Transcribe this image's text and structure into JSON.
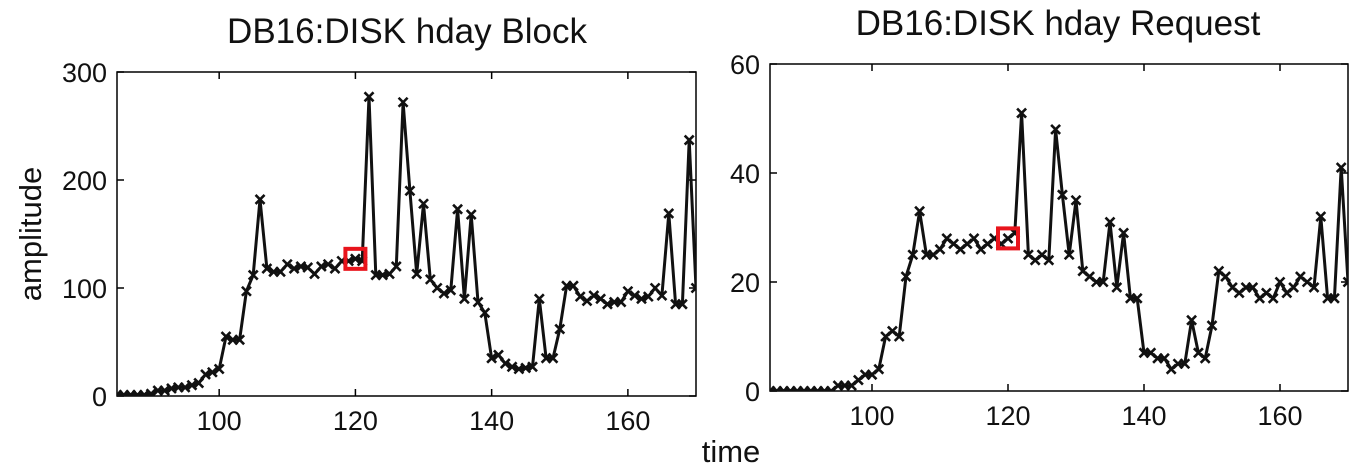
{
  "shared_xlabel": "time",
  "marker_color": "#e8141c",
  "line_color": "#111111",
  "chart_data": [
    {
      "type": "line",
      "title": "DB16:DISK hday Block",
      "xlabel": "",
      "ylabel": "amplitude",
      "xlim": [
        85,
        170
      ],
      "ylim": [
        0,
        300
      ],
      "xticks": [
        100,
        120,
        140,
        160
      ],
      "yticks": [
        0,
        100,
        200,
        300
      ],
      "grid": false,
      "marker": "x",
      "highlight": {
        "x": 120,
        "y": 127
      },
      "x": [
        85,
        86,
        87,
        88,
        89,
        90,
        91,
        92,
        93,
        94,
        95,
        96,
        97,
        98,
        99,
        100,
        101,
        102,
        103,
        104,
        105,
        106,
        107,
        108,
        109,
        110,
        111,
        112,
        113,
        114,
        115,
        116,
        117,
        118,
        119,
        120,
        121,
        122,
        123,
        124,
        125,
        126,
        127,
        128,
        129,
        130,
        131,
        132,
        133,
        134,
        135,
        136,
        137,
        138,
        139,
        140,
        141,
        142,
        143,
        144,
        145,
        146,
        147,
        148,
        149,
        150,
        151,
        152,
        153,
        154,
        155,
        156,
        157,
        158,
        159,
        160,
        161,
        162,
        163,
        164,
        165,
        166,
        167,
        168,
        169,
        170
      ],
      "y": [
        1,
        1,
        1,
        1,
        1,
        2,
        5,
        5,
        7,
        8,
        8,
        10,
        12,
        20,
        22,
        25,
        55,
        52,
        52,
        97,
        112,
        182,
        118,
        115,
        115,
        122,
        118,
        120,
        119,
        113,
        120,
        122,
        118,
        125,
        125,
        127,
        125,
        277,
        112,
        112,
        113,
        120,
        272,
        190,
        113,
        178,
        108,
        100,
        95,
        98,
        173,
        90,
        168,
        87,
        77,
        35,
        38,
        30,
        27,
        25,
        26,
        27,
        90,
        35,
        35,
        62,
        102,
        102,
        92,
        88,
        93,
        90,
        85,
        87,
        87,
        97,
        93,
        90,
        92,
        100,
        93,
        169,
        85,
        85,
        237,
        100
      ]
    },
    {
      "type": "line",
      "title": "DB16:DISK hday Request",
      "xlabel": "",
      "ylabel": "",
      "xlim": [
        85,
        170
      ],
      "ylim": [
        0,
        60
      ],
      "xticks": [
        100,
        120,
        140,
        160
      ],
      "yticks": [
        0,
        20,
        40,
        60
      ],
      "grid": false,
      "marker": "x",
      "highlight": {
        "x": 120,
        "y": 28
      },
      "x": [
        85,
        86,
        87,
        88,
        89,
        90,
        91,
        92,
        93,
        94,
        95,
        96,
        97,
        98,
        99,
        100,
        101,
        102,
        103,
        104,
        105,
        106,
        107,
        108,
        109,
        110,
        111,
        112,
        113,
        114,
        115,
        116,
        117,
        118,
        119,
        120,
        121,
        122,
        123,
        124,
        125,
        126,
        127,
        128,
        129,
        130,
        131,
        132,
        133,
        134,
        135,
        136,
        137,
        138,
        139,
        140,
        141,
        142,
        143,
        144,
        145,
        146,
        147,
        148,
        149,
        150,
        151,
        152,
        153,
        154,
        155,
        156,
        157,
        158,
        159,
        160,
        161,
        162,
        163,
        164,
        165,
        166,
        167,
        168,
        169,
        170
      ],
      "y": [
        0,
        0,
        0,
        0,
        0,
        0,
        0,
        0,
        0,
        0,
        1,
        1,
        1,
        2,
        3,
        3,
        4,
        10,
        11,
        10,
        21,
        25,
        33,
        25,
        25,
        26,
        28,
        27,
        26,
        27,
        28,
        26,
        27,
        28,
        27,
        28,
        29,
        51,
        25,
        24,
        25,
        24,
        48,
        36,
        25,
        35,
        22,
        21,
        20,
        20,
        31,
        19,
        29,
        17,
        17,
        7,
        7,
        6,
        6,
        4,
        5,
        5,
        13,
        7,
        6,
        12,
        22,
        21,
        19,
        18,
        19,
        19,
        17,
        18,
        17,
        20,
        18,
        19,
        21,
        20,
        19,
        32,
        17,
        17,
        41,
        20
      ]
    }
  ]
}
